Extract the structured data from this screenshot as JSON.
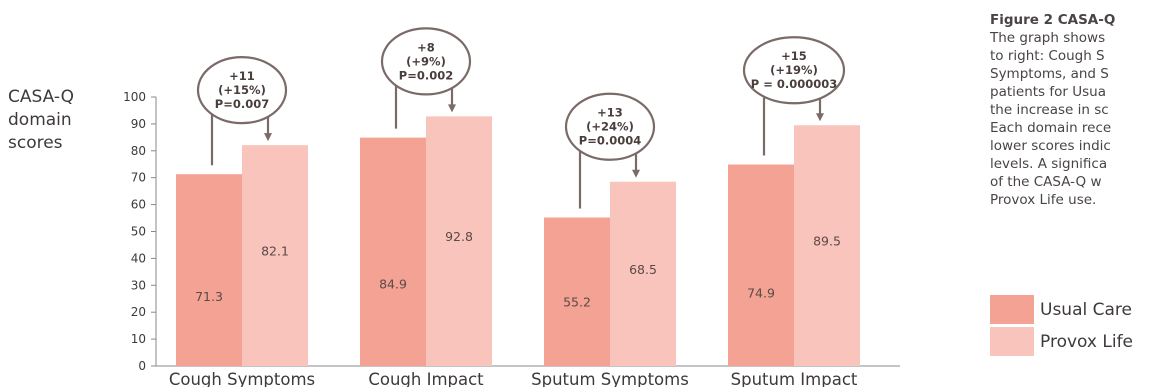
{
  "caption": {
    "title": "Figure 2 CASA-Q",
    "body": "The graph shows\nto right: Cough S\nSymptoms, and S\npatients for Usua\nthe increase in sc\nEach domain rece\nlower scores indic\nlevels. A significa\nof the CASA-Q w\nProvox Life use."
  },
  "colors": {
    "usual_care": "#f4a293",
    "provox_life": "#f9c4bb",
    "text": "#3f3a3a",
    "annotation": "#7a6a68"
  },
  "chart_data": {
    "type": "bar",
    "ylabel": "CASA-Q\ndomain\nscores",
    "ylim": [
      0,
      100
    ],
    "yticks": [
      0,
      10,
      20,
      30,
      40,
      50,
      60,
      70,
      80,
      90,
      100
    ],
    "categories": [
      "Cough Symptoms",
      "Cough Impact",
      "Sputum Symptoms",
      "Sputum Impact"
    ],
    "series": [
      {
        "name": "Usual Care",
        "values": [
          71.3,
          84.9,
          55.2,
          74.9
        ],
        "labels": [
          "71.3",
          "84.9",
          "55.2",
          "74.9"
        ]
      },
      {
        "name": "Provox Life",
        "values": [
          82.1,
          92.8,
          68.5,
          89.5
        ],
        "labels": [
          "82.1",
          "92.8",
          "68.5",
          "89.5"
        ]
      }
    ],
    "annotations": [
      {
        "lines": [
          "+11",
          "(+15%)",
          "P=0.007"
        ]
      },
      {
        "lines": [
          "+8",
          "(+9%)",
          "P=0.002"
        ]
      },
      {
        "lines": [
          "+13",
          "(+24%)",
          "P=0.0004"
        ]
      },
      {
        "lines": [
          "+15",
          "(+19%)",
          "P = 0.000003"
        ]
      }
    ],
    "grid": false,
    "legend": "right"
  }
}
